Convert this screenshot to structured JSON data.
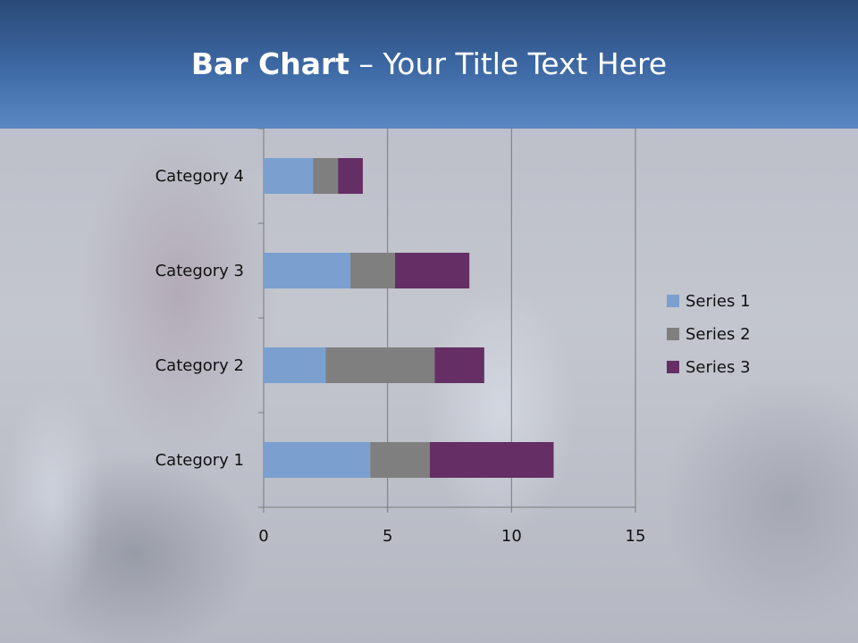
{
  "slide": {
    "title_bold": "Bar Chart",
    "title_rest": " – Your Title Text Here"
  },
  "chart_data": {
    "type": "bar",
    "orientation": "horizontal",
    "stacked": true,
    "categories": [
      "Category 1",
      "Category 2",
      "Category 3",
      "Category 4"
    ],
    "series": [
      {
        "name": "Series 1",
        "values": [
          4.3,
          2.5,
          3.5,
          2.0
        ],
        "color": "#7ba0d0"
      },
      {
        "name": "Series 2",
        "values": [
          2.4,
          4.4,
          1.8,
          1.0
        ],
        "color": "#7f7f7f"
      },
      {
        "name": "Series 3",
        "values": [
          5.0,
          2.0,
          3.0,
          1.0
        ],
        "color": "#652f65"
      }
    ],
    "xlim": [
      0,
      15
    ],
    "xticks": [
      "0",
      "5",
      "10",
      "15"
    ],
    "grid": true,
    "legend": "right"
  }
}
